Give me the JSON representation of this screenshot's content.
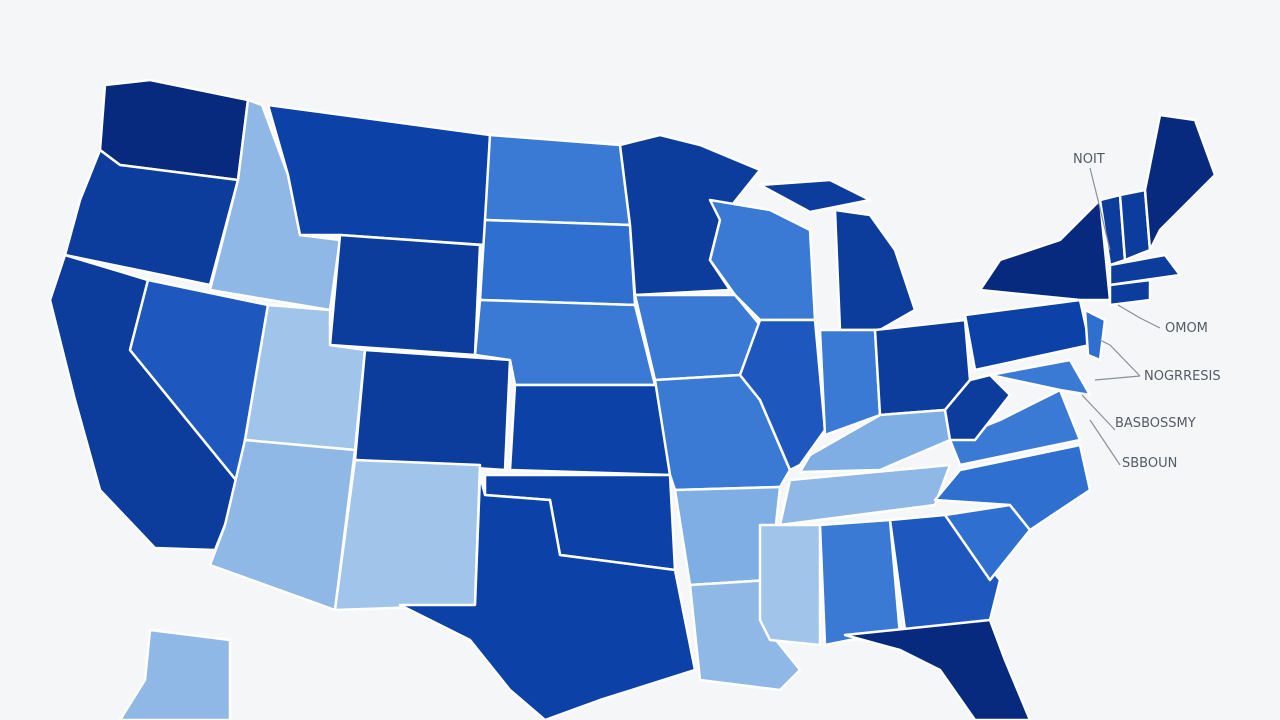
{
  "labels": [
    "NOIT",
    "OMOM",
    "NOGRRESIS",
    "BASBOSSMY",
    "SBBOUN"
  ]
}
